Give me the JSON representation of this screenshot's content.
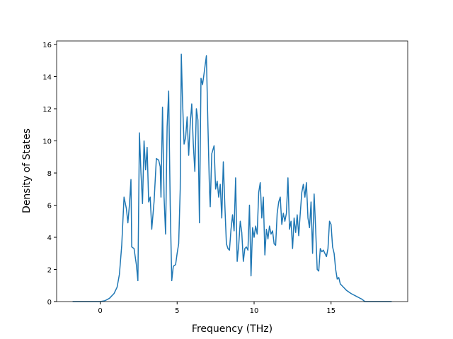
{
  "chart_data": {
    "type": "line",
    "xlabel": "Frequency (THz)",
    "ylabel": "Density of States",
    "xlim": [
      -2.83,
      19.98
    ],
    "ylim": [
      0,
      16.22
    ],
    "xticks": [
      0,
      5,
      10,
      15
    ],
    "yticks": [
      0,
      2,
      4,
      6,
      8,
      10,
      12,
      14,
      16
    ],
    "series": [
      {
        "color": "#1f77b4",
        "x": [
          -1.79,
          0,
          0.3,
          0.6,
          0.9,
          1.1,
          1.25,
          1.4,
          1.55,
          1.7,
          1.8,
          1.9,
          2.0,
          2.05,
          2.2,
          2.35,
          2.45,
          2.55,
          2.65,
          2.75,
          2.85,
          2.95,
          3.05,
          3.15,
          3.25,
          3.35,
          3.5,
          3.65,
          3.8,
          3.9,
          3.95,
          4.05,
          4.15,
          4.25,
          4.35,
          4.45,
          4.55,
          4.65,
          4.75,
          4.9,
          5.0,
          5.1,
          5.2,
          5.27,
          5.35,
          5.45,
          5.55,
          5.65,
          5.75,
          5.85,
          5.95,
          6.05,
          6.15,
          6.25,
          6.35,
          6.45,
          6.55,
          6.65,
          6.75,
          6.9,
          7.0,
          7.1,
          7.15,
          7.25,
          7.4,
          7.5,
          7.6,
          7.7,
          7.8,
          7.9,
          8.0,
          8.1,
          8.2,
          8.3,
          8.4,
          8.5,
          8.6,
          8.7,
          8.8,
          8.9,
          9.0,
          9.1,
          9.2,
          9.3,
          9.4,
          9.5,
          9.6,
          9.7,
          9.8,
          9.9,
          10.0,
          10.1,
          10.2,
          10.3,
          10.4,
          10.5,
          10.6,
          10.7,
          10.8,
          10.9,
          11.0,
          11.1,
          11.2,
          11.3,
          11.4,
          11.5,
          11.6,
          11.7,
          11.8,
          11.9,
          12.0,
          12.1,
          12.2,
          12.3,
          12.4,
          12.5,
          12.6,
          12.7,
          12.8,
          12.9,
          13.0,
          13.1,
          13.2,
          13.3,
          13.4,
          13.5,
          13.6,
          13.7,
          13.8,
          13.9,
          14.0,
          14.1,
          14.2,
          14.3,
          14.4,
          14.5,
          14.6,
          14.7,
          14.8,
          14.9,
          15.0,
          15.1,
          15.2,
          15.3,
          15.4,
          15.5,
          15.6,
          15.8,
          16.0,
          16.3,
          16.7,
          17.0,
          17.2,
          18.94
        ],
        "values": [
          0,
          0,
          0.05,
          0.2,
          0.5,
          0.9,
          1.7,
          3.5,
          6.5,
          5.8,
          4.9,
          6.0,
          7.6,
          3.4,
          3.3,
          2.3,
          1.3,
          10.5,
          8.0,
          6.1,
          10.0,
          8.2,
          9.6,
          6.2,
          6.5,
          4.5,
          6.2,
          8.9,
          8.8,
          8.4,
          6.5,
          12.1,
          6.5,
          4.2,
          10.9,
          13.1,
          6.0,
          1.3,
          2.2,
          2.3,
          3.0,
          3.6,
          7.0,
          15.4,
          12.5,
          9.8,
          10.2,
          11.5,
          9.1,
          11.1,
          12.3,
          9.8,
          8.1,
          12.0,
          11.3,
          4.9,
          13.9,
          13.5,
          14.2,
          15.3,
          11.0,
          7.0,
          5.9,
          9.2,
          9.7,
          7.0,
          7.5,
          6.5,
          7.3,
          5.2,
          8.7,
          6.0,
          3.6,
          3.3,
          3.2,
          4.5,
          5.4,
          4.4,
          7.7,
          2.5,
          3.5,
          5.0,
          4.3,
          2.5,
          3.3,
          3.4,
          3.2,
          6.0,
          1.6,
          4.6,
          4.0,
          4.7,
          4.2,
          6.8,
          7.4,
          5.2,
          6.5,
          2.9,
          4.5,
          3.9,
          4.7,
          4.2,
          4.4,
          3.6,
          3.5,
          5.5,
          6.2,
          6.5,
          4.8,
          5.5,
          5.0,
          5.5,
          7.7,
          4.5,
          5.0,
          3.3,
          5.2,
          4.3,
          5.4,
          4.1,
          5.5,
          6.8,
          7.3,
          6.5,
          7.4,
          5.2,
          4.6,
          6.2,
          3.0,
          6.7,
          4.5,
          2.0,
          1.9,
          3.3,
          3.1,
          3.2,
          3.0,
          2.8,
          3.3,
          5.0,
          4.8,
          3.4,
          3.0,
          2.0,
          1.4,
          1.5,
          1.1,
          0.9,
          0.7,
          0.5,
          0.3,
          0.15,
          0,
          0
        ]
      }
    ]
  }
}
